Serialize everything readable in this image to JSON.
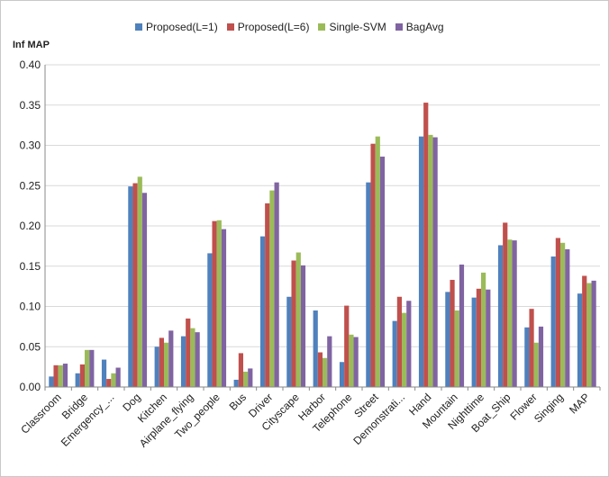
{
  "chart_data": {
    "type": "bar",
    "ylabel": "Inf MAP",
    "ylim": [
      0,
      0.4
    ],
    "yticks": [
      "0.00",
      "0.05",
      "0.10",
      "0.15",
      "0.20",
      "0.25",
      "0.30",
      "0.35",
      "0.40"
    ],
    "grid": true,
    "legend_position": "top",
    "categories": [
      "Classroom",
      "Bridge",
      "Emergency_...",
      "Dog",
      "Kitchen",
      "Airplane_flying",
      "Two_people",
      "Bus",
      "Driver",
      "Cityscape",
      "Harbor",
      "Telephone",
      "Street",
      "Demonstrati...",
      "Hand",
      "Mountain",
      "Nighttime",
      "Boat_Ship",
      "Flower",
      "Singing",
      "MAP"
    ],
    "series": [
      {
        "name": "Proposed(L=1)",
        "color": "#4f81bd",
        "values": [
          0.013,
          0.017,
          0.034,
          0.249,
          0.05,
          0.063,
          0.166,
          0.009,
          0.187,
          0.112,
          0.095,
          0.031,
          0.254,
          0.082,
          0.311,
          0.118,
          0.111,
          0.176,
          0.074,
          0.162,
          0.116
        ]
      },
      {
        "name": "Proposed(L=6)",
        "color": "#c0504d",
        "values": [
          0.027,
          0.028,
          0.01,
          0.253,
          0.061,
          0.085,
          0.206,
          0.042,
          0.228,
          0.157,
          0.043,
          0.101,
          0.302,
          0.112,
          0.353,
          0.133,
          0.122,
          0.204,
          0.097,
          0.185,
          0.138
        ]
      },
      {
        "name": "Single-SVM",
        "color": "#9bbb59",
        "values": [
          0.027,
          0.046,
          0.017,
          0.261,
          0.055,
          0.073,
          0.207,
          0.019,
          0.244,
          0.167,
          0.036,
          0.065,
          0.311,
          0.092,
          0.313,
          0.095,
          0.142,
          0.183,
          0.055,
          0.179,
          0.129
        ]
      },
      {
        "name": "BagAvg",
        "color": "#8064a2",
        "values": [
          0.029,
          0.046,
          0.024,
          0.241,
          0.07,
          0.068,
          0.196,
          0.023,
          0.254,
          0.151,
          0.063,
          0.062,
          0.286,
          0.107,
          0.31,
          0.152,
          0.121,
          0.182,
          0.075,
          0.171,
          0.132
        ]
      }
    ]
  }
}
